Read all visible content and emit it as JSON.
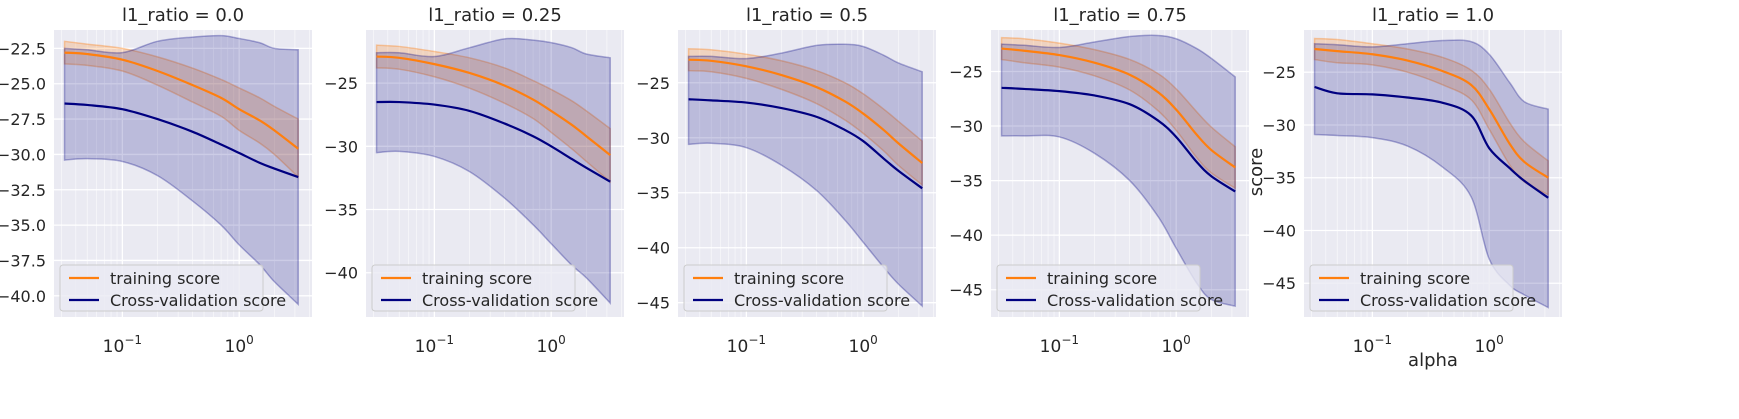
{
  "figure": {
    "ylabel": "score",
    "xlabel": "alpha"
  },
  "colors": {
    "train": "#ff7f0e",
    "cv": "#000080",
    "panel_bg": "#eaeaf2",
    "grid": "#ffffff"
  },
  "chart_data": [
    {
      "type": "line",
      "title": "l1_ratio = 0.0",
      "xscale": "log",
      "xlim": [
        0.026,
        4.2
      ],
      "ylim": [
        -41.5,
        -21.2
      ],
      "yticks": [
        -22.5,
        -25.0,
        -27.5,
        -30.0,
        -32.5,
        -35.0,
        -37.5,
        -40.0
      ],
      "yticklabels": [
        "−22.5",
        "−25.0",
        "−27.5",
        "−30.0",
        "−32.5",
        "−35.0",
        "−37.5",
        "−40.0"
      ],
      "xticks": [
        0.1,
        1
      ],
      "xticklabels_base": [
        "10",
        "10"
      ],
      "xticklabels_exp": [
        "−1",
        "0"
      ],
      "legend": "lower-left",
      "x": [
        0.032,
        0.05,
        0.1,
        0.2,
        0.4,
        0.7,
        1.0,
        1.5,
        2.0,
        3.2
      ],
      "series": [
        {
          "name": "training score",
          "values": [
            -22.8,
            -22.9,
            -23.3,
            -24.1,
            -25.1,
            -26.0,
            -26.8,
            -27.6,
            -28.3,
            -29.6
          ],
          "band_upper": [
            -22.0,
            -22.2,
            -22.5,
            -23.1,
            -23.9,
            -24.7,
            -25.3,
            -26.0,
            -26.6,
            -27.5
          ],
          "band_lower": [
            -23.6,
            -23.7,
            -24.1,
            -25.1,
            -26.3,
            -27.3,
            -28.3,
            -29.2,
            -30.0,
            -31.6
          ]
        },
        {
          "name": "Cross-validation score",
          "values": [
            -26.4,
            -26.5,
            -26.8,
            -27.5,
            -28.4,
            -29.3,
            -29.9,
            -30.6,
            -31.0,
            -31.6
          ],
          "band_upper": [
            -22.5,
            -22.6,
            -22.8,
            -22.0,
            -21.7,
            -21.6,
            -21.8,
            -22.1,
            -22.5,
            -22.6
          ],
          "band_lower": [
            -30.4,
            -30.3,
            -30.5,
            -31.5,
            -33.3,
            -35.0,
            -36.4,
            -37.8,
            -39.0,
            -40.6
          ]
        }
      ]
    },
    {
      "type": "line",
      "title": "l1_ratio = 0.25",
      "xscale": "log",
      "xlim": [
        0.026,
        4.2
      ],
      "ylim": [
        -43.5,
        -20.8
      ],
      "yticks": [
        -25,
        -30,
        -35,
        -40
      ],
      "yticklabels": [
        "−25",
        "−30",
        "−35",
        "−40"
      ],
      "xticks": [
        0.1,
        1
      ],
      "xticklabels_base": [
        "10",
        "10"
      ],
      "xticklabels_exp": [
        "−1",
        "0"
      ],
      "legend": "lower-left",
      "x": [
        0.032,
        0.05,
        0.1,
        0.2,
        0.4,
        0.7,
        1.0,
        1.5,
        2.0,
        3.2
      ],
      "series": [
        {
          "name": "training score",
          "values": [
            -22.9,
            -23.0,
            -23.5,
            -24.2,
            -25.2,
            -26.3,
            -27.2,
            -28.3,
            -29.2,
            -30.7
          ],
          "band_upper": [
            -22.0,
            -22.1,
            -22.5,
            -23.0,
            -23.8,
            -24.8,
            -25.5,
            -26.4,
            -27.2,
            -28.6
          ],
          "band_lower": [
            -23.8,
            -23.9,
            -24.5,
            -25.4,
            -26.6,
            -27.8,
            -28.9,
            -30.2,
            -31.2,
            -32.8
          ]
        },
        {
          "name": "Cross-validation score",
          "values": [
            -26.5,
            -26.5,
            -26.7,
            -27.2,
            -28.2,
            -29.2,
            -30.0,
            -31.0,
            -31.7,
            -32.8
          ],
          "band_upper": [
            -22.6,
            -22.6,
            -22.9,
            -22.2,
            -21.5,
            -21.6,
            -21.8,
            -22.2,
            -22.7,
            -23.0
          ],
          "band_lower": [
            -30.5,
            -30.4,
            -30.8,
            -32.0,
            -34.1,
            -36.2,
            -37.7,
            -39.4,
            -40.4,
            -42.4
          ]
        }
      ]
    },
    {
      "type": "line",
      "title": "l1_ratio = 0.5",
      "xscale": "log",
      "xlim": [
        0.026,
        4.2
      ],
      "ylim": [
        -46.3,
        -20.2
      ],
      "yticks": [
        -25,
        -30,
        -35,
        -40,
        -45
      ],
      "yticklabels": [
        "−25",
        "−30",
        "−35",
        "−40",
        "−45"
      ],
      "xticks": [
        0.1,
        1
      ],
      "xticklabels_base": [
        "10",
        "10"
      ],
      "xticklabels_exp": [
        "−1",
        "0"
      ],
      "legend": "lower-left",
      "x": [
        0.032,
        0.05,
        0.1,
        0.2,
        0.4,
        0.7,
        1.0,
        1.5,
        2.0,
        3.2
      ],
      "series": [
        {
          "name": "training score",
          "values": [
            -22.9,
            -23.0,
            -23.5,
            -24.3,
            -25.4,
            -26.7,
            -27.8,
            -29.3,
            -30.5,
            -32.3
          ],
          "band_upper": [
            -21.9,
            -22.0,
            -22.4,
            -23.0,
            -23.9,
            -25.0,
            -26.0,
            -27.4,
            -28.5,
            -30.3
          ],
          "band_lower": [
            -23.9,
            -24.0,
            -24.6,
            -25.6,
            -26.9,
            -28.4,
            -29.6,
            -31.2,
            -32.5,
            -34.3
          ]
        },
        {
          "name": "Cross-validation score",
          "values": [
            -26.5,
            -26.6,
            -26.8,
            -27.3,
            -28.1,
            -29.3,
            -30.3,
            -31.9,
            -33.0,
            -34.6
          ],
          "band_upper": [
            -22.6,
            -22.6,
            -22.8,
            -22.3,
            -21.6,
            -21.5,
            -21.7,
            -22.5,
            -23.2,
            -24.0
          ],
          "band_lower": [
            -30.6,
            -30.5,
            -30.9,
            -32.5,
            -34.8,
            -37.5,
            -39.5,
            -41.8,
            -43.3,
            -45.3
          ]
        }
      ]
    },
    {
      "type": "line",
      "title": "l1_ratio = 0.75",
      "xscale": "log",
      "xlim": [
        0.026,
        4.2
      ],
      "ylim": [
        -47.5,
        -21.2
      ],
      "yticks": [
        -25,
        -30,
        -35,
        -40,
        -45
      ],
      "yticklabels": [
        "−25",
        "−30",
        "−35",
        "−40",
        "−45"
      ],
      "xticks": [
        0.1,
        1
      ],
      "xticklabels_base": [
        "10",
        "10"
      ],
      "xticklabels_exp": [
        "−1",
        "0"
      ],
      "legend": "lower-left",
      "x": [
        0.032,
        0.05,
        0.1,
        0.2,
        0.4,
        0.7,
        1.0,
        1.5,
        2.0,
        3.2
      ],
      "series": [
        {
          "name": "training score",
          "values": [
            -22.9,
            -23.1,
            -23.5,
            -24.2,
            -25.3,
            -26.9,
            -28.5,
            -30.8,
            -32.2,
            -33.8
          ],
          "band_upper": [
            -21.9,
            -22.0,
            -22.4,
            -23.0,
            -23.9,
            -25.2,
            -26.6,
            -28.7,
            -30.1,
            -31.9
          ],
          "band_lower": [
            -23.9,
            -24.2,
            -24.6,
            -25.4,
            -26.7,
            -28.6,
            -30.4,
            -32.9,
            -34.3,
            -35.7
          ]
        },
        {
          "name": "Cross-validation score",
          "values": [
            -26.5,
            -26.6,
            -26.8,
            -27.2,
            -28.0,
            -29.5,
            -31.0,
            -33.3,
            -34.6,
            -36.0
          ],
          "band_upper": [
            -22.5,
            -22.6,
            -22.8,
            -22.3,
            -21.8,
            -21.7,
            -22.0,
            -22.9,
            -23.8,
            -25.5
          ],
          "band_lower": [
            -30.9,
            -30.9,
            -31.0,
            -32.5,
            -35.0,
            -38.3,
            -41.2,
            -44.4,
            -45.9,
            -46.5
          ]
        }
      ]
    },
    {
      "type": "line",
      "title": "l1_ratio = 1.0",
      "xscale": "log",
      "xlim": [
        0.026,
        4.2
      ],
      "ylim": [
        -48.2,
        -21.0
      ],
      "yticks": [
        -25,
        -30,
        -35,
        -40,
        -45
      ],
      "yticklabels": [
        "−25",
        "−30",
        "−35",
        "−40",
        "−45"
      ],
      "xticks": [
        0.1,
        1
      ],
      "xticklabels_base": [
        "10",
        "10"
      ],
      "xticklabels_exp": [
        "−1",
        "0"
      ],
      "legend": "lower-left",
      "x": [
        0.032,
        0.05,
        0.1,
        0.2,
        0.4,
        0.7,
        1.0,
        1.5,
        2.0,
        3.2
      ],
      "series": [
        {
          "name": "training score",
          "values": [
            -22.8,
            -23.0,
            -23.3,
            -23.9,
            -24.9,
            -26.2,
            -28.5,
            -31.8,
            -33.5,
            -35.0
          ],
          "band_upper": [
            -21.8,
            -21.9,
            -22.3,
            -22.8,
            -23.6,
            -24.8,
            -26.6,
            -29.8,
            -31.6,
            -33.4
          ],
          "band_lower": [
            -23.8,
            -24.1,
            -24.3,
            -25.0,
            -26.2,
            -27.6,
            -30.4,
            -33.8,
            -35.4,
            -36.6
          ]
        },
        {
          "name": "Cross-validation score",
          "values": [
            -26.4,
            -27.0,
            -27.1,
            -27.4,
            -27.9,
            -29.1,
            -32.2,
            -34.1,
            -35.3,
            -36.9
          ],
          "band_upper": [
            -22.3,
            -22.4,
            -22.6,
            -22.3,
            -22.0,
            -22.1,
            -23.3,
            -26.0,
            -27.8,
            -28.5
          ],
          "band_lower": [
            -30.9,
            -31.0,
            -31.2,
            -32.0,
            -34.0,
            -36.8,
            -42.7,
            -45.2,
            -46.1,
            -47.3
          ]
        }
      ]
    }
  ]
}
